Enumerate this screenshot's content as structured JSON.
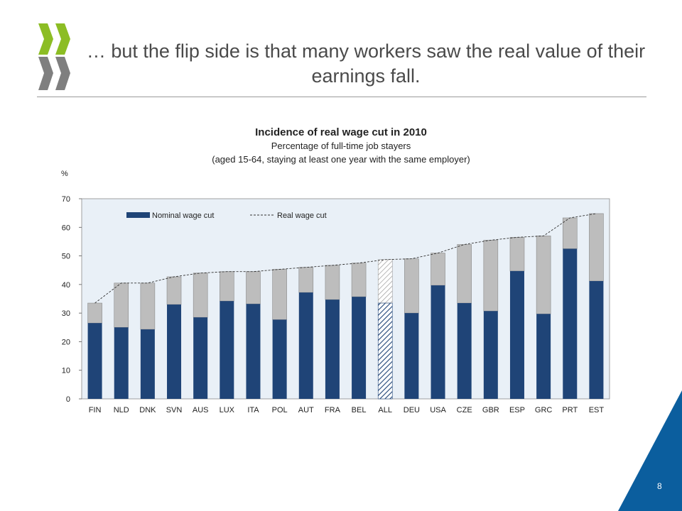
{
  "slide": {
    "title": "… but the flip side is that many workers saw the real value of their earnings fall.",
    "page_number": "8"
  },
  "colors": {
    "nominal": "#1f4477",
    "real": "#bdbdbd",
    "plot_bg": "#e9f0f7",
    "accent_green": "#8cbd24",
    "accent_grey": "#7f7f7f",
    "corner_blue": "#0b5e9e"
  },
  "chart_data": {
    "type": "bar",
    "title": "Incidence of real wage cut in 2010",
    "subtitle_lines": [
      "Percentage of full-time job stayers",
      "(aged 15-64, staying at least one year with the same employer)"
    ],
    "ylabel": "%",
    "ylim": [
      0,
      70
    ],
    "yticks": [
      "0",
      "10",
      "20",
      "30",
      "40",
      "50",
      "60",
      "70"
    ],
    "grid": false,
    "legend_position": "top-left",
    "categories": [
      "FIN",
      "NLD",
      "DNK",
      "SVN",
      "AUS",
      "LUX",
      "ITA",
      "POL",
      "AUT",
      "FRA",
      "BEL",
      "ALL",
      "DEU",
      "USA",
      "CZE",
      "GBR",
      "ESP",
      "GRC",
      "PRT",
      "EST"
    ],
    "highlight_category": "ALL",
    "series": [
      {
        "name": "Nominal wage cut",
        "style": "bar",
        "values": [
          26.5,
          25,
          24.3,
          33,
          28.5,
          34.2,
          33.2,
          27.7,
          37.2,
          34.7,
          35.7,
          33.5,
          30,
          39.7,
          33.5,
          30.7,
          44.7,
          29.7,
          52.5,
          41.2
        ]
      },
      {
        "name": "Real wage cut",
        "style": "dashed-line",
        "values": [
          33.5,
          40.5,
          40.5,
          42.7,
          44,
          44.5,
          44.5,
          45.3,
          46,
          46.7,
          47.5,
          48.7,
          49,
          51,
          54,
          55.5,
          56.5,
          57,
          63.3,
          64.8
        ]
      }
    ]
  }
}
